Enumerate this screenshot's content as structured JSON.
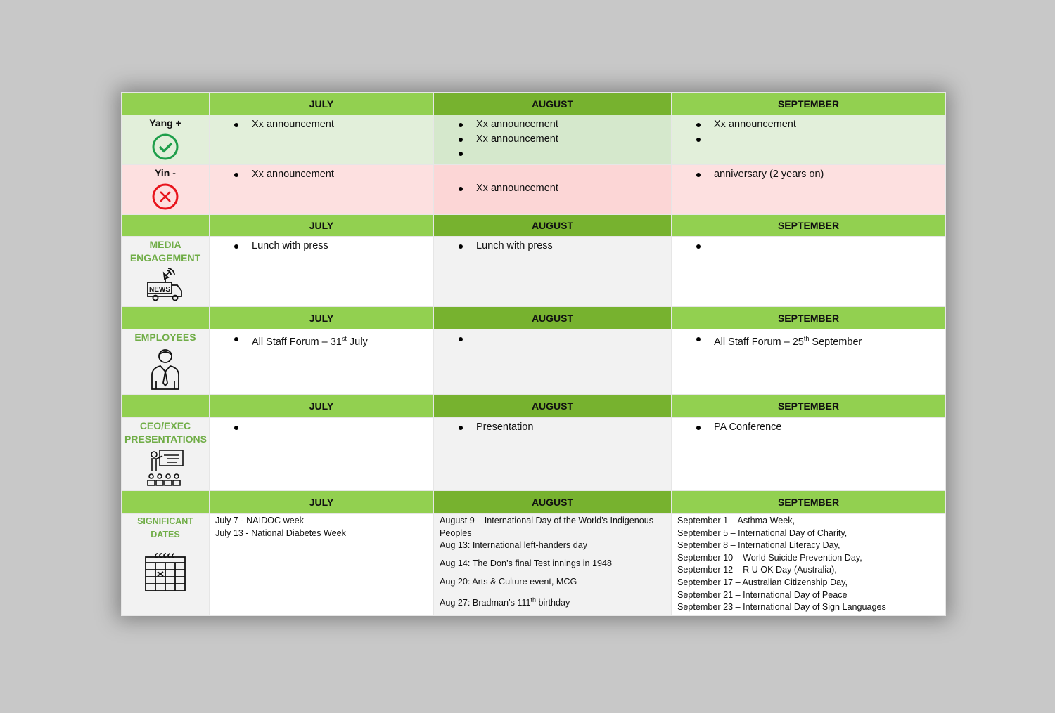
{
  "months": {
    "july": "JULY",
    "august": "AUGUST",
    "september": "SEPTEMBER"
  },
  "colors": {
    "header_green": "#92d050",
    "header_august": "#77b22f",
    "label_green": "#70ad47",
    "yang_bg": "#e2efda",
    "yin_bg": "#fde0e0"
  },
  "sections": [
    {
      "rows": [
        {
          "label": "Yang +",
          "icon": "check-circle-icon",
          "cls": "yang",
          "h": 71,
          "july": [
            "Xx announcement"
          ],
          "august": [
            "Xx announcement",
            "Xx announcement",
            ""
          ],
          "september": [
            "Xx announcement",
            ""
          ]
        },
        {
          "label": "Yin -",
          "icon": "x-circle-icon",
          "cls": "yin",
          "h": 68,
          "july": [
            "Xx announcement"
          ],
          "august": [
            "",
            "Xx announcement"
          ],
          "august_empty_first": true,
          "september": [
            "anniversary (2 years on)"
          ]
        }
      ],
      "hh": 32
    },
    {
      "rows": [
        {
          "label": "MEDIA ENGAGEMENT",
          "icon": "news-van-icon",
          "h": 99,
          "july": [
            "Lunch with press"
          ],
          "august": [
            "Lunch with press"
          ],
          "september": [
            ""
          ]
        }
      ],
      "hh": 31
    },
    {
      "rows": [
        {
          "label": "EMPLOYEES",
          "icon": "employee-icon",
          "h": 84,
          "july": [
            {
              "pre": "All Staff Forum – 31",
              "sup": "st",
              "post": " July"
            }
          ],
          "august": [
            ""
          ],
          "september": [
            {
              "pre": "All Staff Forum – 25",
              "sup": "th",
              "post": " September"
            }
          ]
        }
      ],
      "hh": 32
    },
    {
      "rows": [
        {
          "label": "CEO/EXEC PRESENTATIONS",
          "icon": "presentation-icon",
          "h": 104,
          "july": [
            ""
          ],
          "august": [
            "Presentation"
          ],
          "september": [
            "PA Conference"
          ]
        }
      ],
      "hh": 33
    },
    {
      "rows": [
        {
          "label": "SIGNIFICANT DATES",
          "icon": "calendar-icon",
          "h": 141,
          "dates": true,
          "july": [
            "July 7 - NAIDOC week",
            "July 13 - National Diabetes Week"
          ],
          "august": [
            "August 9 – International Day of the World’s Indigenous Peoples",
            "Aug 13: International left-handers day",
            "Aug 14: The Don’s final Test innings in 1948",
            "Aug 20: Arts & Culture event, MCG",
            {
              "pre": "Aug 27: Bradman’s 111",
              "sup": "th",
              "post": " birthday"
            }
          ],
          "september": [
            "September 1 – Asthma Week,",
            "September 5 – International Day of Charity,",
            "September 8 – International Literacy Day,",
            "September 10 – World Suicide Prevention Day,",
            "September 12 – R U OK Day (Australia),",
            "September 17 – Australian Citizenship Day,",
            "September 21 – International Day of Peace",
            "September 23 – International Day of Sign Languages"
          ]
        }
      ],
      "hh": 32
    }
  ]
}
